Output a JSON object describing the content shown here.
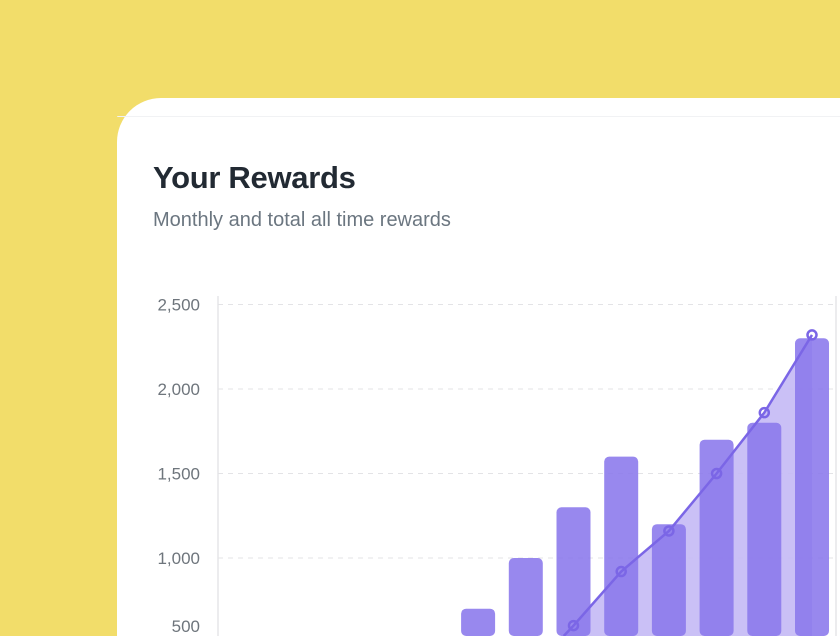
{
  "header": {
    "title": "Your Rewards",
    "subtitle": "Monthly and total all time rewards"
  },
  "colors": {
    "background": "#f2dd6a",
    "bar": "#8a77ec",
    "line": "#7b66e6",
    "area": "#c4b9f5"
  },
  "chart_data": {
    "type": "bar",
    "title": "",
    "xlabel": "",
    "ylabel": "",
    "ylim": [
      0,
      2500
    ],
    "y_ticks": [
      "500",
      "1,000",
      "1,500",
      "2,000",
      "2,500"
    ],
    "grid": true,
    "series": [
      {
        "type": "bar",
        "values": [
          null,
          null,
          null,
          null,
          null,
          700,
          1000,
          1300,
          1600,
          1200,
          1700,
          1800,
          2300
        ]
      },
      {
        "type": "line-area",
        "values": [
          null,
          null,
          null,
          null,
          null,
          null,
          300,
          600,
          920,
          1160,
          1500,
          1860,
          2320
        ]
      }
    ]
  }
}
